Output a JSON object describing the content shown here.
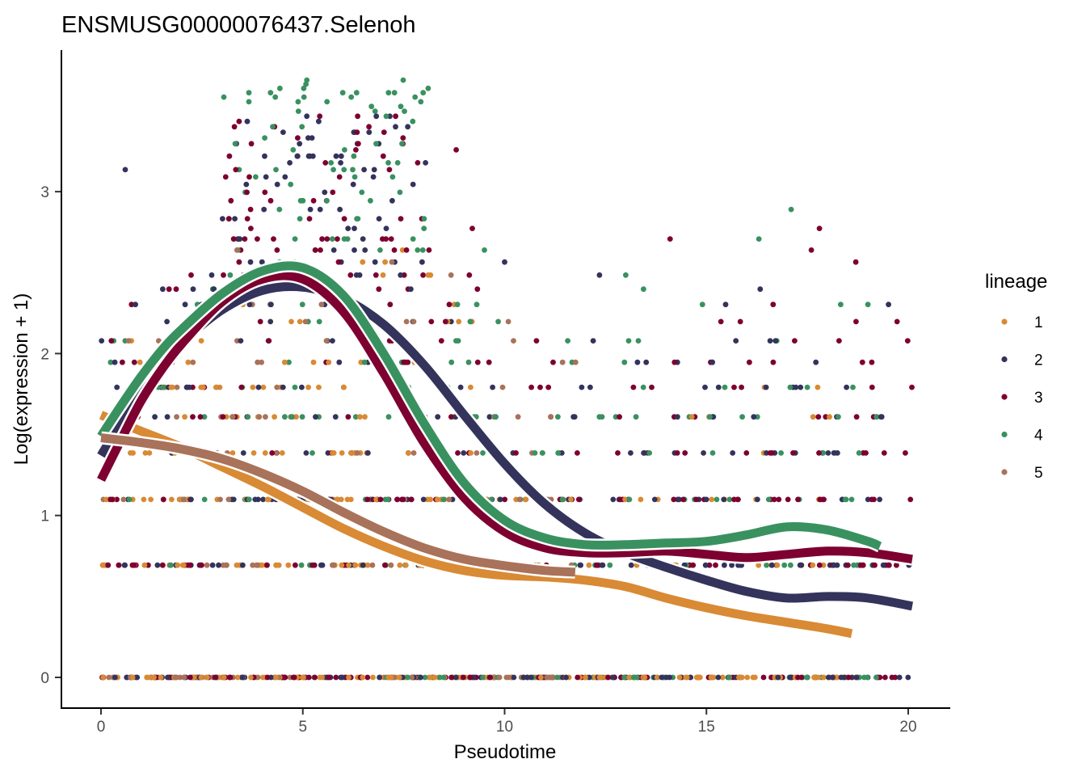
{
  "chart_data": {
    "type": "scatter",
    "title": "ENSMUSG00000076437.Selenoh",
    "xlabel": "Pseudotime",
    "ylabel": "Log(expression + 1)",
    "xlim": [
      -0.98,
      21.02
    ],
    "ylim": [
      -0.19,
      3.87
    ],
    "x_ticks": [
      0,
      5,
      10,
      15,
      20
    ],
    "y_ticks": [
      0,
      1,
      2,
      3
    ],
    "grid": false,
    "legend": {
      "title": "lineage",
      "position": "right",
      "entries": [
        {
          "label": "1",
          "color": "#D98A34"
        },
        {
          "label": "2",
          "color": "#33335C"
        },
        {
          "label": "3",
          "color": "#7D0030"
        },
        {
          "label": "4",
          "color": "#3A9160"
        },
        {
          "label": "5",
          "color": "#A9725A"
        }
      ]
    },
    "expression_levels": [
      0,
      0.693,
      1.099,
      1.386,
      1.609,
      1.792,
      1.946,
      2.079,
      2.197,
      2.303,
      2.398,
      2.485,
      2.565,
      2.639,
      2.708,
      2.773,
      2.833,
      2.89,
      2.944,
      2.996,
      3.045,
      3.091,
      3.136,
      3.178,
      3.219,
      3.258,
      3.296,
      3.332,
      3.367,
      3.401,
      3.434,
      3.466,
      3.497,
      3.526,
      3.555,
      3.584,
      3.611,
      3.638,
      3.664,
      3.689
    ],
    "point_groups": [
      {
        "lineage": "1",
        "x_range": [
          0,
          9.2
        ],
        "level_weights": [
          30,
          14,
          16,
          8,
          7,
          5,
          4,
          3,
          2,
          2,
          1,
          1,
          1,
          1,
          0,
          0,
          0,
          0,
          0,
          0
        ],
        "count": 220
      },
      {
        "lineage": "1",
        "x_range": [
          8.8,
          18.8
        ],
        "level_weights": [
          40,
          8,
          6,
          2,
          2,
          1,
          0,
          0,
          0,
          0
        ],
        "count": 110
      },
      {
        "lineage": "2",
        "x_range": [
          0,
          20.1
        ],
        "level_weights": [
          34,
          20,
          18,
          10,
          8,
          6,
          5,
          4,
          3,
          3,
          3,
          2,
          2,
          2,
          2,
          1,
          1,
          1,
          1,
          1,
          1,
          1,
          1,
          1,
          1,
          1,
          1,
          1,
          1,
          1,
          1,
          1,
          0,
          0,
          0,
          0
        ],
        "count": 360
      },
      {
        "lineage": "3",
        "x_range": [
          0,
          20.1
        ],
        "level_weights": [
          34,
          22,
          20,
          10,
          8,
          6,
          5,
          4,
          3,
          3,
          2,
          2,
          2,
          2,
          2,
          1,
          1,
          1,
          1,
          1,
          1,
          1,
          1,
          1,
          1,
          1,
          1,
          1,
          1,
          1,
          1,
          1,
          0,
          0,
          0,
          0
        ],
        "count": 360
      },
      {
        "lineage": "4",
        "x_range": [
          0,
          19.3
        ],
        "level_weights": [
          24,
          12,
          14,
          9,
          8,
          6,
          5,
          4,
          3,
          3,
          3,
          2,
          2,
          2,
          2,
          1,
          1,
          1,
          1,
          1,
          1,
          1,
          1,
          1,
          1,
          1,
          1,
          1,
          1,
          1,
          1,
          1,
          1,
          1,
          1,
          1,
          1,
          1,
          1,
          1
        ],
        "count": 260
      },
      {
        "lineage": "5",
        "x_range": [
          0,
          11.8
        ],
        "level_weights": [
          26,
          14,
          18,
          8,
          6,
          5,
          4,
          3,
          2,
          2,
          1,
          1,
          1,
          1,
          0,
          0
        ],
        "count": 150
      }
    ],
    "highlight_points": [
      {
        "lineage": "2",
        "x": 0.6,
        "y": 3.136
      },
      {
        "lineage": "4",
        "x": 5.1,
        "y": 3.689
      },
      {
        "lineage": "4",
        "x": 5.6,
        "y": 3.555
      },
      {
        "lineage": "4",
        "x": 6.2,
        "y": 3.584
      },
      {
        "lineage": "4",
        "x": 6.7,
        "y": 3.526
      },
      {
        "lineage": "2",
        "x": 5.1,
        "y": 3.466
      },
      {
        "lineage": "3",
        "x": 7.3,
        "y": 3.466
      },
      {
        "lineage": "3",
        "x": 4.3,
        "y": 3.401
      },
      {
        "lineage": "2",
        "x": 7.6,
        "y": 3.401
      },
      {
        "lineage": "3",
        "x": 8.8,
        "y": 3.258
      },
      {
        "lineage": "3",
        "x": 14.1,
        "y": 2.708
      },
      {
        "lineage": "4",
        "x": 16.3,
        "y": 2.708
      },
      {
        "lineage": "4",
        "x": 17.1,
        "y": 2.89
      },
      {
        "lineage": "3",
        "x": 17.8,
        "y": 2.773
      },
      {
        "lineage": "3",
        "x": 17.6,
        "y": 2.639
      },
      {
        "lineage": "3",
        "x": 18.7,
        "y": 2.565
      },
      {
        "lineage": "4",
        "x": 13.0,
        "y": 2.485
      },
      {
        "lineage": "4",
        "x": 14.9,
        "y": 2.303
      },
      {
        "lineage": "4",
        "x": 19.0,
        "y": 2.303
      },
      {
        "lineage": "3",
        "x": 9.2,
        "y": 2.773
      },
      {
        "lineage": "4",
        "x": 9.5,
        "y": 2.639
      },
      {
        "lineage": "2",
        "x": 10.0,
        "y": 2.565
      }
    ],
    "series": [
      {
        "name": "1",
        "color": "#D98A34",
        "x": [
          0,
          1,
          2,
          3,
          4,
          5,
          6,
          7,
          8,
          9,
          10,
          11,
          12,
          13,
          14,
          15,
          16,
          17,
          18,
          18.6
        ],
        "y": [
          1.62,
          1.52,
          1.42,
          1.3,
          1.18,
          1.05,
          0.92,
          0.81,
          0.72,
          0.66,
          0.63,
          0.62,
          0.6,
          0.56,
          0.49,
          0.43,
          0.38,
          0.34,
          0.3,
          0.27
        ]
      },
      {
        "name": "2",
        "color": "#33335C",
        "x": [
          0,
          0.5,
          1,
          1.5,
          2,
          3,
          4,
          5,
          6,
          7,
          8,
          9,
          10,
          11,
          12,
          13,
          14,
          15,
          16,
          17,
          18,
          19,
          20.1
        ],
        "y": [
          1.37,
          1.58,
          1.78,
          1.94,
          2.07,
          2.27,
          2.39,
          2.41,
          2.34,
          2.18,
          1.93,
          1.62,
          1.32,
          1.07,
          0.89,
          0.77,
          0.68,
          0.6,
          0.53,
          0.49,
          0.5,
          0.49,
          0.44
        ]
      },
      {
        "name": "3",
        "color": "#7D0030",
        "x": [
          0,
          0.5,
          1,
          1.5,
          2,
          3,
          4,
          5,
          6,
          7,
          8,
          9,
          10,
          11,
          12,
          13,
          14,
          15,
          16,
          17,
          18,
          19,
          20.1
        ],
        "y": [
          1.22,
          1.47,
          1.71,
          1.9,
          2.06,
          2.32,
          2.46,
          2.46,
          2.26,
          1.88,
          1.45,
          1.11,
          0.9,
          0.8,
          0.77,
          0.77,
          0.78,
          0.76,
          0.74,
          0.76,
          0.78,
          0.77,
          0.73
        ]
      },
      {
        "name": "4",
        "color": "#3A9160",
        "x": [
          0,
          0.5,
          1,
          1.5,
          2,
          3,
          4,
          5,
          6,
          7,
          8,
          9,
          10,
          11,
          12,
          13,
          14,
          15,
          16,
          17,
          18,
          19,
          19.3
        ],
        "y": [
          1.49,
          1.68,
          1.86,
          2.02,
          2.15,
          2.37,
          2.51,
          2.53,
          2.36,
          2.0,
          1.57,
          1.2,
          0.97,
          0.86,
          0.82,
          0.82,
          0.83,
          0.84,
          0.88,
          0.93,
          0.91,
          0.84,
          0.81
        ]
      },
      {
        "name": "5",
        "color": "#A9725A",
        "x": [
          0,
          1,
          2,
          3,
          4,
          5,
          6,
          7,
          8,
          9,
          10,
          11,
          11.75
        ],
        "y": [
          1.48,
          1.45,
          1.41,
          1.35,
          1.26,
          1.15,
          1.02,
          0.9,
          0.8,
          0.73,
          0.69,
          0.66,
          0.65
        ]
      }
    ]
  }
}
